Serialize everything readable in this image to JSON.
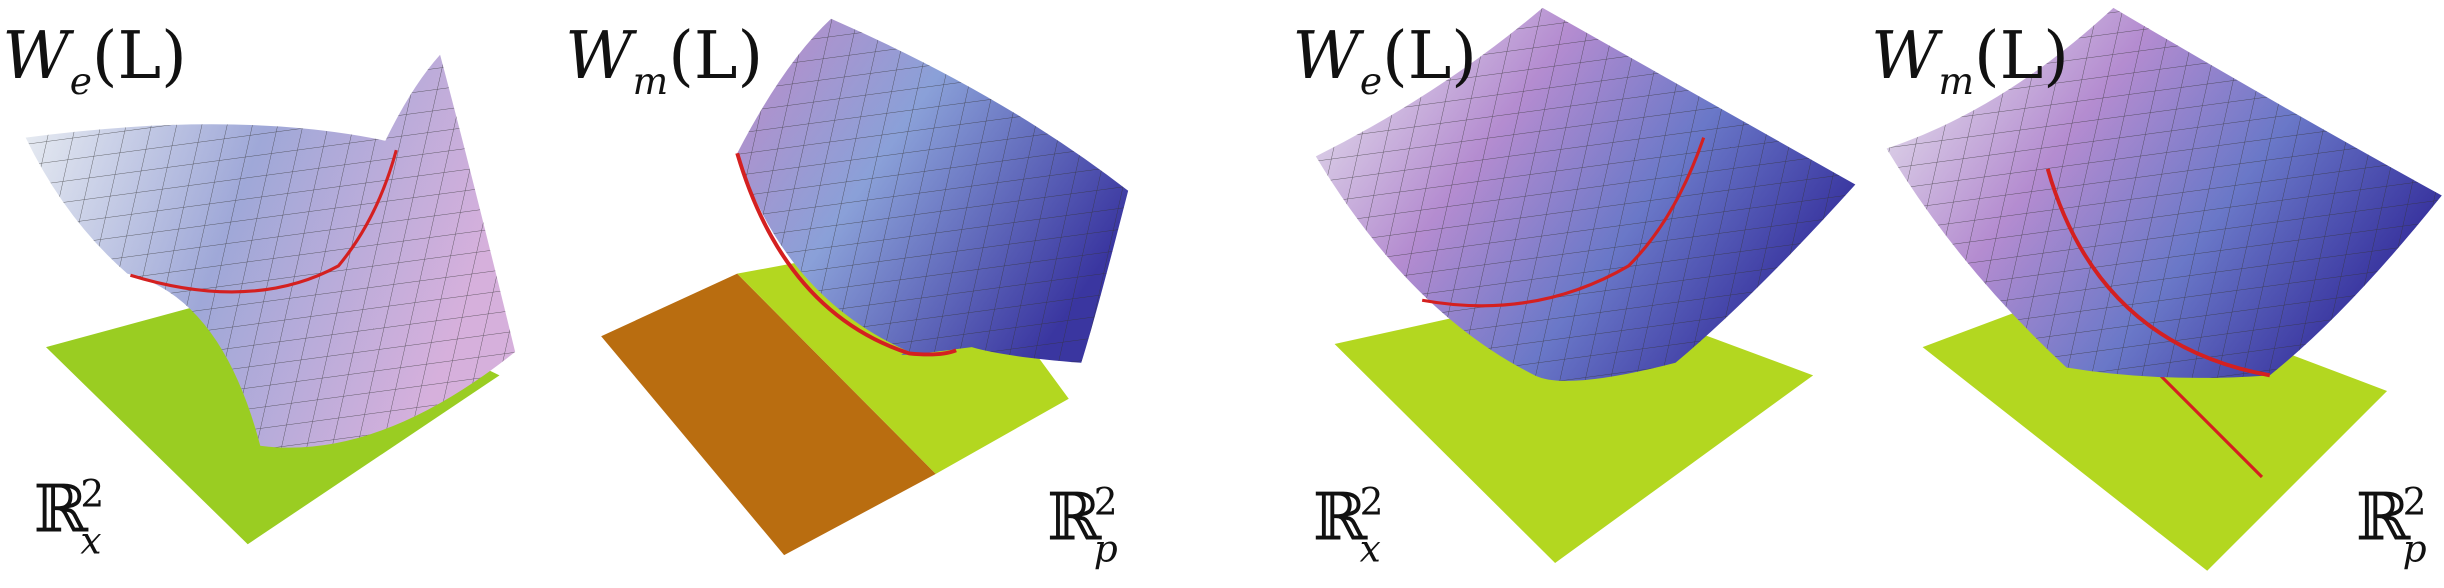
{
  "panels": [
    {
      "label": {
        "base": "W",
        "sub": "e",
        "rest": "(L)"
      },
      "space": {
        "base": "ℝ",
        "sup": "2",
        "sub": "x"
      }
    },
    {
      "label": {
        "base": "W",
        "sub": "m",
        "rest": "(L)"
      },
      "space": {
        "base": "ℝ",
        "sup": "2",
        "sub": "p"
      }
    },
    {
      "label": {
        "base": "W",
        "sub": "e",
        "rest": "(L)"
      },
      "space": {
        "base": "ℝ",
        "sup": "2",
        "sub": "x"
      }
    },
    {
      "label": {
        "base": "W",
        "sub": "m",
        "rest": "(L)"
      },
      "space": {
        "base": "ℝ",
        "sup": "2",
        "sub": "p"
      }
    }
  ]
}
